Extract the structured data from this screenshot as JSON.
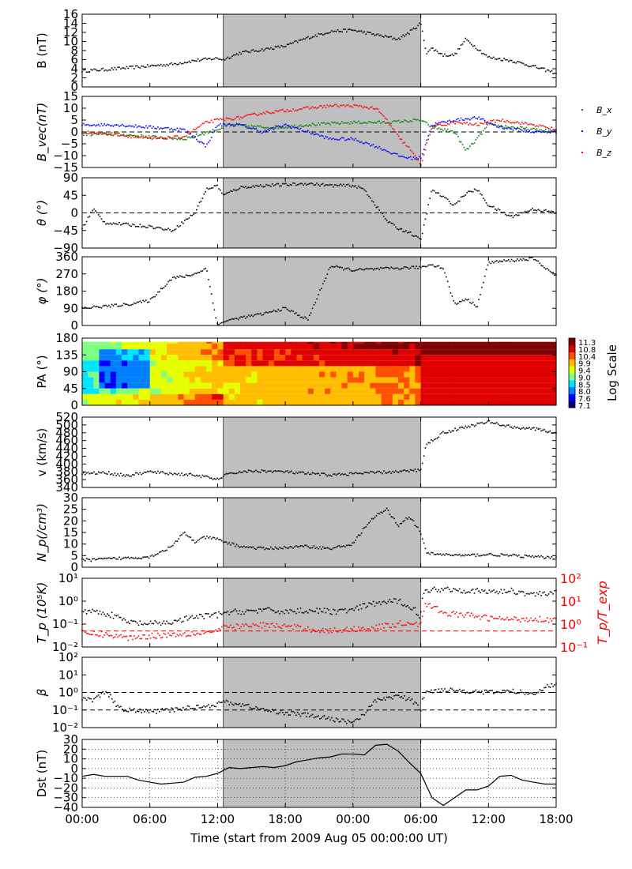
{
  "figure": {
    "xlabel": "Time (start from 2009 Aug 05 00:00:00 UT)",
    "x_tick_labels": [
      "00:00",
      "06:00",
      "12:00",
      "18:00",
      "00:00",
      "06:00",
      "12:00",
      "18:00"
    ],
    "x_tick_hours": [
      0,
      6,
      12,
      18,
      24,
      30,
      36,
      42
    ],
    "x_range_hours": [
      0,
      42
    ],
    "shaded_interval_hours": [
      12.5,
      30
    ],
    "colors": {
      "shade": "#bfbfbf",
      "red": "#ff0000",
      "green": "#008000",
      "blue": "#0000ff",
      "black": "#000000"
    }
  },
  "chart_data": [
    {
      "type": "scatter",
      "ylabel": "B (nT)",
      "ylim": [
        0,
        16
      ],
      "yticks": [
        "0",
        "2",
        "4",
        "6",
        "8",
        "10",
        "12",
        "14",
        "16"
      ],
      "series": [
        {
          "color": "#000000",
          "x": [
            0,
            2,
            4,
            6,
            8,
            10,
            12,
            12.5,
            14,
            16,
            18,
            20,
            22,
            24,
            26,
            28,
            29,
            30,
            30.5,
            31,
            32,
            33,
            34,
            36,
            38,
            40,
            42
          ],
          "y": [
            3.5,
            3.8,
            4.2,
            4.6,
            5.0,
            5.8,
            6.3,
            6.0,
            7.5,
            8.2,
            9.0,
            10.8,
            12.2,
            12.5,
            11.5,
            10.5,
            12.0,
            14.0,
            7.5,
            8.5,
            7.0,
            7.0,
            10.5,
            6.5,
            5.8,
            4.5,
            3.0
          ]
        }
      ]
    },
    {
      "type": "scatter",
      "ylabel": "B_vec(nT)",
      "ylim": [
        -15,
        15
      ],
      "yticks": [
        "−15",
        "−10",
        "−5",
        "0",
        "5",
        "10",
        "15"
      ],
      "legend": [
        "B_x",
        "B_y",
        "B_z"
      ],
      "legend_location": "outside-right",
      "reference_lines": [
        0
      ],
      "series": [
        {
          "name": "B_x",
          "color": "#008000",
          "x": [
            0,
            3,
            6,
            9,
            12,
            13,
            16,
            18,
            20,
            24,
            27,
            30,
            31,
            33,
            34,
            35,
            36,
            38,
            40,
            42
          ],
          "y": [
            -1,
            -1,
            -2,
            -3,
            1,
            3,
            2,
            2,
            3,
            4,
            4,
            5,
            2,
            0,
            -8,
            -3,
            3,
            2,
            1,
            0
          ]
        },
        {
          "name": "B_y",
          "color": "#0000ff",
          "x": [
            0,
            3,
            6,
            9,
            11,
            12,
            14,
            16,
            18,
            20,
            22,
            24,
            26,
            28,
            29,
            30,
            31,
            33,
            35,
            37,
            40,
            42
          ],
          "y": [
            3,
            3,
            2,
            1,
            -6,
            3,
            3,
            0,
            3,
            0,
            -3,
            -3,
            -6,
            -10,
            -11,
            -11,
            3,
            5,
            6,
            2,
            0,
            0
          ]
        },
        {
          "name": "B_z",
          "color": "#ff0000",
          "x": [
            0,
            3,
            6,
            9,
            11,
            12,
            14,
            16,
            18,
            20,
            22,
            24,
            26,
            27,
            28,
            29,
            30,
            31,
            33,
            35,
            37,
            40,
            42
          ],
          "y": [
            0,
            -1,
            -3,
            -2,
            4,
            5,
            6,
            8,
            9,
            10,
            11,
            11,
            10,
            5,
            -2,
            -7,
            -14,
            2,
            4,
            3,
            5,
            3,
            1
          ]
        }
      ]
    },
    {
      "type": "scatter",
      "ylabel": "θ (°)",
      "ylim": [
        -90,
        90
      ],
      "yticks": [
        "−90",
        "−45",
        "0",
        "45",
        "90"
      ],
      "reference_lines": [
        0
      ],
      "series": [
        {
          "color": "#000000",
          "x": [
            0,
            1,
            2,
            4,
            6,
            8,
            10,
            11,
            12,
            12.5,
            14,
            16,
            18,
            20,
            22,
            24,
            25,
            26,
            27,
            28,
            29,
            30,
            31,
            32,
            33,
            34,
            35,
            36,
            38,
            40,
            42
          ],
          "y": [
            -40,
            10,
            -25,
            -30,
            -35,
            -45,
            0,
            60,
            70,
            45,
            65,
            70,
            72,
            75,
            70,
            70,
            60,
            20,
            -20,
            -40,
            -50,
            -70,
            60,
            40,
            20,
            50,
            60,
            20,
            -10,
            10,
            0
          ]
        }
      ]
    },
    {
      "type": "scatter",
      "ylabel": "φ (°)",
      "ylim": [
        0,
        360
      ],
      "yticks": [
        "0",
        "90",
        "180",
        "270",
        "360"
      ],
      "series": [
        {
          "color": "#000000",
          "x": [
            0,
            2,
            4,
            6,
            8,
            9,
            10,
            11,
            12,
            12.5,
            14,
            16,
            18,
            20,
            22,
            24,
            26,
            28,
            30,
            31,
            32,
            33,
            34,
            35,
            36,
            38,
            40,
            42
          ],
          "y": [
            90,
            100,
            110,
            130,
            250,
            255,
            270,
            300,
            0,
            20,
            40,
            60,
            90,
            30,
            310,
            290,
            295,
            300,
            305,
            320,
            300,
            110,
            140,
            100,
            330,
            340,
            350,
            260
          ]
        }
      ]
    },
    {
      "type": "heatmap",
      "ylabel": "PA (°)",
      "ylim": [
        0,
        180
      ],
      "yticks": [
        "0",
        "45",
        "90",
        "135",
        "180"
      ],
      "colorbar_label": "Log Scale",
      "colorbar_ticks": [
        "11.3",
        "10.8",
        "10.4",
        "9.9",
        "9.4",
        "9.0",
        "8.5",
        "8.0",
        "7.6",
        "7.1"
      ],
      "colorbar_range": [
        7.1,
        11.3
      ]
    },
    {
      "type": "scatter",
      "ylabel": "v (km/s)",
      "ylim": [
        340,
        520
      ],
      "yticks": [
        "340",
        "360",
        "380",
        "400",
        "420",
        "440",
        "460",
        "480",
        "500",
        "520"
      ],
      "series": [
        {
          "color": "#000000",
          "x": [
            0,
            2,
            4,
            6,
            8,
            10,
            12,
            12.5,
            14,
            16,
            18,
            20,
            22,
            24,
            26,
            28,
            30,
            30.5,
            32,
            34,
            36,
            38,
            40,
            42
          ],
          "y": [
            375,
            378,
            370,
            380,
            375,
            372,
            360,
            370,
            380,
            382,
            380,
            375,
            372,
            375,
            378,
            380,
            385,
            450,
            480,
            495,
            508,
            495,
            490,
            480
          ]
        }
      ]
    },
    {
      "type": "scatter",
      "ylabel": "N_p(/cm³)",
      "ylim": [
        0,
        30
      ],
      "yticks": [
        "0",
        "5",
        "10",
        "15",
        "20",
        "25",
        "30"
      ],
      "series": [
        {
          "color": "#000000",
          "x": [
            0,
            2,
            4,
            6,
            8,
            9,
            10,
            11,
            12,
            12.5,
            14,
            16,
            18,
            20,
            22,
            24,
            25,
            26,
            27,
            28,
            29,
            30,
            30.5,
            32,
            34,
            36,
            38,
            40,
            42
          ],
          "y": [
            3,
            3.5,
            4,
            4.5,
            9,
            15,
            11,
            13,
            12,
            11,
            9,
            8,
            8.5,
            9,
            8,
            10,
            17,
            22,
            25,
            18,
            22,
            15,
            6,
            5.5,
            5,
            5.5,
            5,
            4.5,
            4
          ]
        }
      ]
    },
    {
      "type": "scatter",
      "ylabel": "T_p (10⁵K)",
      "y2label": "T_p/T_exp",
      "yscale": "log",
      "ylim": [
        0.01,
        10
      ],
      "y2lim": [
        0.1,
        100
      ],
      "yticks": [
        "10⁻²",
        "10⁻¹",
        "10⁰",
        "10¹"
      ],
      "y2ticks": [
        "10⁻¹",
        "10⁰",
        "10¹",
        "10²"
      ],
      "reference_lines_y2": [
        0.5
      ],
      "series": [
        {
          "name": "T_p",
          "color": "#000000",
          "x": [
            0,
            2,
            4,
            6,
            8,
            10,
            12,
            12.5,
            14,
            16,
            18,
            20,
            22,
            24,
            26,
            27,
            28,
            29,
            30,
            30.5,
            32,
            34,
            36,
            38,
            40,
            42
          ],
          "y": [
            0.4,
            0.3,
            0.12,
            0.1,
            0.12,
            0.2,
            0.25,
            0.3,
            0.35,
            0.4,
            0.35,
            0.4,
            0.35,
            0.4,
            0.8,
            0.9,
            1.0,
            0.6,
            0.2,
            3.0,
            3.5,
            3.0,
            2.5,
            2.8,
            2.0,
            2.5
          ]
        },
        {
          "name": "T_p/T_exp",
          "color": "#ff0000",
          "axis": "y2",
          "x": [
            0,
            2,
            4,
            6,
            8,
            10,
            12,
            12.5,
            14,
            16,
            18,
            20,
            22,
            24,
            26,
            28,
            29,
            30,
            30.5,
            32,
            34,
            36,
            38,
            40,
            42
          ],
          "y": [
            0.4,
            0.35,
            0.25,
            0.3,
            0.35,
            0.4,
            0.5,
            0.7,
            0.8,
            0.9,
            0.8,
            0.6,
            0.5,
            0.6,
            0.7,
            1.0,
            1.2,
            0.9,
            7.0,
            3.0,
            2.5,
            1.8,
            1.6,
            1.7,
            1.5
          ]
        }
      ]
    },
    {
      "type": "scatter",
      "ylabel": "β",
      "yscale": "log",
      "ylim": [
        0.01,
        100
      ],
      "yticks": [
        "10⁻²",
        "10⁻¹",
        "10⁰",
        "10¹",
        "10²"
      ],
      "reference_lines": [
        1,
        0.1
      ],
      "series": [
        {
          "color": "#000000",
          "x": [
            0,
            1,
            2,
            3,
            4,
            6,
            8,
            10,
            12,
            12.5,
            14,
            16,
            18,
            20,
            22,
            24,
            25,
            26,
            27,
            28,
            29,
            30,
            30.5,
            32,
            34,
            36,
            38,
            40,
            42
          ],
          "y": [
            0.5,
            0.3,
            1.0,
            0.15,
            0.1,
            0.08,
            0.1,
            0.15,
            0.2,
            0.3,
            0.2,
            0.1,
            0.07,
            0.05,
            0.03,
            0.02,
            0.05,
            0.3,
            0.5,
            0.6,
            0.4,
            0.08,
            1.0,
            1.5,
            1.2,
            1.0,
            1.2,
            0.8,
            3.0
          ]
        }
      ]
    },
    {
      "type": "line",
      "ylabel": "Dst (nT)",
      "ylim": [
        -40,
        30
      ],
      "grid": true,
      "yticks": [
        "−40",
        "−30",
        "−20",
        "−10",
        "0",
        "10",
        "20",
        "30"
      ],
      "series": [
        {
          "color": "#000000",
          "x": [
            0,
            1,
            2,
            3,
            4,
            5,
            6,
            7,
            8,
            9,
            10,
            11,
            12,
            13,
            14,
            15,
            16,
            17,
            18,
            19,
            20,
            21,
            22,
            23,
            24,
            25,
            26,
            27,
            28,
            29,
            30,
            31,
            32,
            33,
            34,
            35,
            36,
            37,
            38,
            39,
            40,
            41,
            42
          ],
          "y": [
            -8,
            -6,
            -8,
            -8,
            -8,
            -12,
            -14,
            -16,
            -15,
            -14,
            -9,
            -8,
            -5,
            1,
            0,
            1,
            2,
            1,
            3,
            7,
            9,
            11,
            12,
            15,
            15,
            14,
            24,
            25,
            18,
            6,
            -5,
            -30,
            -38,
            -30,
            -22,
            -22,
            -18,
            -8,
            -7,
            -12,
            -14,
            -16,
            -16
          ]
        }
      ]
    }
  ]
}
